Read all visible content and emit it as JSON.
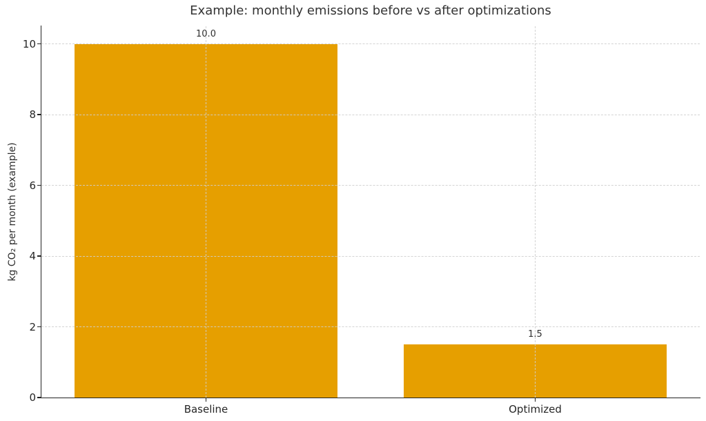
{
  "chart_data": {
    "type": "bar",
    "title": "Example: monthly emissions before vs after optimizations",
    "ylabel": "kg CO₂ per month (example)",
    "xlabel": "",
    "categories": [
      "Baseline",
      "Optimized"
    ],
    "values": [
      10.0,
      1.5
    ],
    "bar_labels": [
      "10.0",
      "1.5"
    ],
    "yticks": [
      0,
      2,
      4,
      6,
      8,
      10
    ],
    "ylim": [
      0,
      10.5
    ],
    "bar_width_fraction": 0.8,
    "grid": true,
    "grid_linestyle": "dashed",
    "legend_position": "none",
    "colors": {
      "bar": "#E69F00",
      "grid": "#cfcfcf",
      "axis": "#222222",
      "text": "#2e2e2e",
      "background": "#ffffff"
    }
  }
}
